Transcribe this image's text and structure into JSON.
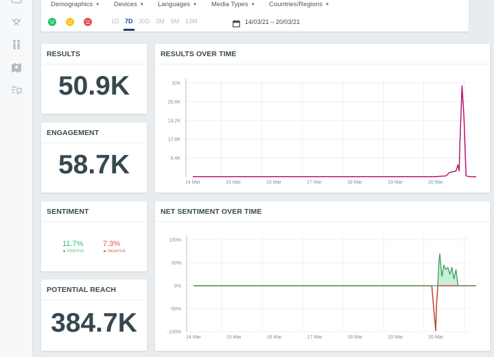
{
  "filters": {
    "demographics": "Demographics",
    "devices": "Devices",
    "languages": "Languages",
    "media_types": "Media Types",
    "countries": "Countries/Regions"
  },
  "ranges": [
    "1D",
    "7D",
    "30D",
    "3M",
    "6M",
    "13M"
  ],
  "active_range": "7D",
  "date_range": "14/03/21 – 20/03/21",
  "cards": {
    "results": {
      "title": "RESULTS",
      "value": "50.9K"
    },
    "engagement": {
      "title": "ENGAGEMENT",
      "value": "58.7K"
    },
    "sentiment": {
      "title": "SENTIMENT",
      "positive_pct": "11.7%",
      "positive_label": "POSITIVE",
      "negative_pct": "7.3%",
      "negative_label": "NEGATIVE"
    },
    "reach": {
      "title": "POTENTIAL REACH",
      "value": "384.7K"
    }
  },
  "colors": {
    "accent": "#1e40af",
    "results_line": "#b8136e",
    "positive": "#2ebf6b",
    "negative": "#d9534f",
    "neutral": "#f5c518",
    "net_line": "#3f9a5c",
    "net_negative": "#c2493f"
  },
  "icons": {
    "sidebar": [
      "award-icon",
      "people-icon",
      "map-icon",
      "comment-list-icon"
    ],
    "faces": [
      "happy-face-icon",
      "neutral-face-icon",
      "sad-face-icon"
    ],
    "date": "calendar-icon"
  },
  "chart_data": [
    {
      "type": "line",
      "title": "RESULTS OVER TIME",
      "x_ticks": [
        "14 Mar",
        "15 Mar",
        "16 Mar",
        "17 Mar",
        "18 Mar",
        "19 Mar",
        "20 Mar"
      ],
      "y_ticks": [
        "6.4K",
        "12.8K",
        "19.2K",
        "25.6K",
        "32K"
      ],
      "ylim": [
        0,
        32000
      ],
      "x": [
        0,
        6.0,
        6.25,
        6.35,
        6.45,
        6.5,
        6.55,
        6.58,
        6.6,
        6.65,
        6.7,
        6.75,
        6.82,
        6.85,
        6.9,
        7.0
      ],
      "series": [
        {
          "values": [
            40,
            50,
            300,
            1500,
            1800,
            1900,
            4000,
            2000,
            12000,
            31000,
            20000,
            300,
            60,
            40,
            20,
            20
          ]
        }
      ],
      "grid": true
    },
    {
      "type": "line",
      "title": "NET SENTIMENT OVER TIME",
      "x_ticks": [
        "14 Mar",
        "15 Mar",
        "16 Mar",
        "17 Mar",
        "18 Mar",
        "19 Mar",
        "20 Mar"
      ],
      "y_ticks": [
        "100%",
        "50%",
        "0%",
        "-50%",
        "-100%"
      ],
      "ylim": [
        -100,
        100
      ],
      "x": [
        0,
        5.9,
        5.95,
        6.0,
        6.02,
        6.05,
        6.08,
        6.1,
        6.15,
        6.2,
        6.25,
        6.3,
        6.35,
        6.4,
        6.45,
        6.5,
        6.55,
        7.0
      ],
      "series": [
        {
          "values": [
            0,
            0,
            -50,
            -98,
            -40,
            0,
            55,
            70,
            20,
            45,
            35,
            40,
            25,
            40,
            15,
            35,
            0,
            0
          ]
        }
      ],
      "grid": true
    }
  ]
}
